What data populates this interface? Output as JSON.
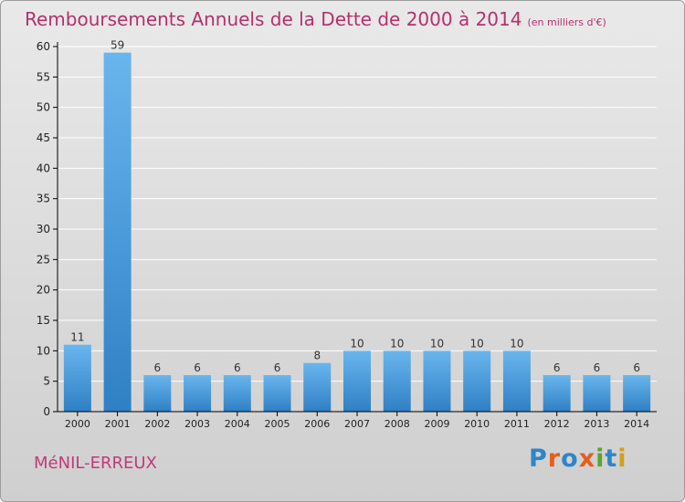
{
  "title": "Remboursements Annuels de la Dette de 2000 à 2014",
  "subtitle": "(en milliers d'€)",
  "commune": "MéNIL-ERREUX",
  "logo": {
    "text": "Proxiti",
    "letter_colors": [
      "#2e86c8",
      "#e85d1b",
      "#2e86c8",
      "#e85d1b",
      "#5aa62c",
      "#2e86c8",
      "#d4a017"
    ]
  },
  "colors": {
    "title": "#b5306c",
    "bar_top": "#69b6ee",
    "bar_bottom": "#2f7fc4",
    "axis": "#000000",
    "grid": "#ffffff"
  },
  "chart_data": {
    "type": "bar",
    "categories": [
      "2000",
      "2001",
      "2002",
      "2003",
      "2004",
      "2005",
      "2006",
      "2007",
      "2008",
      "2009",
      "2010",
      "2011",
      "2012",
      "2013",
      "2014"
    ],
    "values": [
      11,
      59,
      6,
      6,
      6,
      6,
      8,
      10,
      10,
      10,
      10,
      10,
      6,
      6,
      6
    ],
    "ylim": [
      0,
      60
    ],
    "yticks": [
      0,
      5,
      10,
      15,
      20,
      25,
      30,
      35,
      40,
      45,
      50,
      55,
      60
    ],
    "grid": true,
    "data_labels": true
  }
}
